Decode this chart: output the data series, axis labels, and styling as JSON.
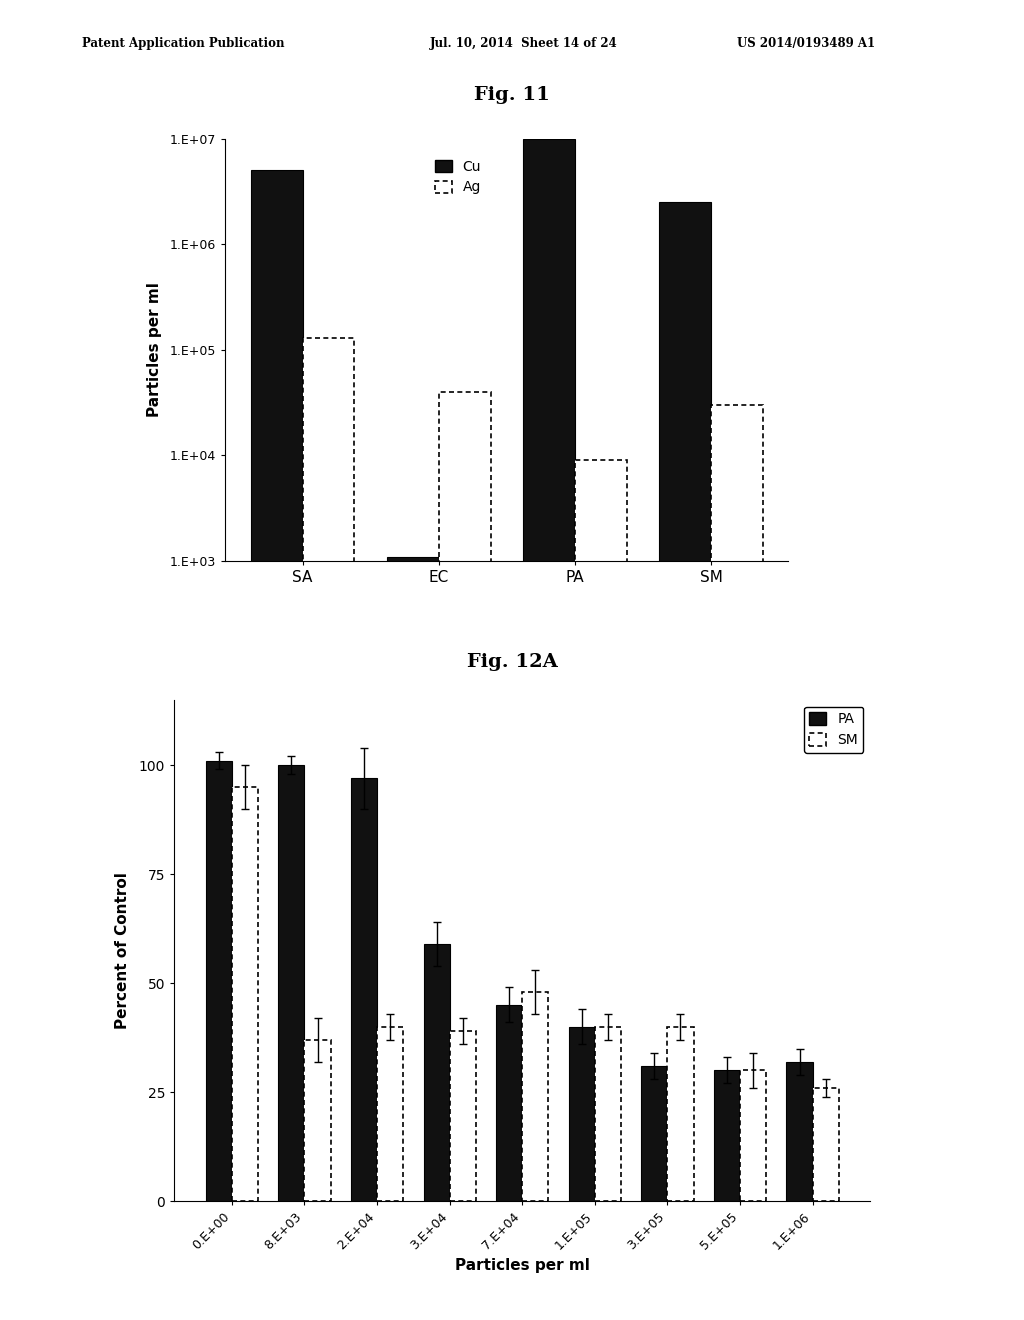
{
  "header_left": "Patent Application Publication",
  "header_mid": "Jul. 10, 2014  Sheet 14 of 24",
  "header_right": "US 2014/0193489 A1",
  "fig11_title": "Fig. 11",
  "fig11_categories": [
    "SA",
    "EC",
    "PA",
    "SM"
  ],
  "fig11_Cu": [
    5000000,
    1100,
    10000000,
    2500000
  ],
  "fig11_Ag": [
    130000,
    40000,
    9000,
    30000
  ],
  "fig11_ylabel": "Particles per ml",
  "fig11_ylim_log": [
    1000,
    10000000
  ],
  "fig11_yticks": [
    1000,
    10000,
    100000,
    1000000,
    10000000
  ],
  "fig11_yticklabels": [
    "1.E+03",
    "1.E+04",
    "1.E+05",
    "1.E+06",
    "1.E+07"
  ],
  "fig12a_title": "Fig. 12A",
  "fig12a_categories": [
    "0.E+00",
    "8.E+03",
    "2.E+04",
    "3.E+04",
    "7.E+04",
    "1.E+05",
    "3.E+05",
    "5.E+05",
    "1.E+06"
  ],
  "fig12a_PA": [
    101,
    100,
    97,
    59,
    45,
    40,
    31,
    30,
    32
  ],
  "fig12a_SM": [
    95,
    37,
    40,
    39,
    48,
    40,
    40,
    30,
    26
  ],
  "fig12a_PA_err": [
    2,
    2,
    7,
    5,
    4,
    4,
    3,
    3,
    3
  ],
  "fig12a_SM_err": [
    5,
    5,
    3,
    3,
    5,
    3,
    3,
    4,
    2
  ],
  "fig12a_ylabel": "Percent of Control",
  "fig12a_xlabel": "Particles per ml",
  "fig12a_ylim": [
    0,
    115
  ],
  "fig12a_yticks": [
    0,
    25,
    50,
    75,
    100
  ],
  "background_color": "#ffffff",
  "bar_color_cu": "#111111",
  "bar_color_ag": "#ffffff",
  "bar_color_pa": "#111111",
  "bar_color_sm": "#ffffff"
}
